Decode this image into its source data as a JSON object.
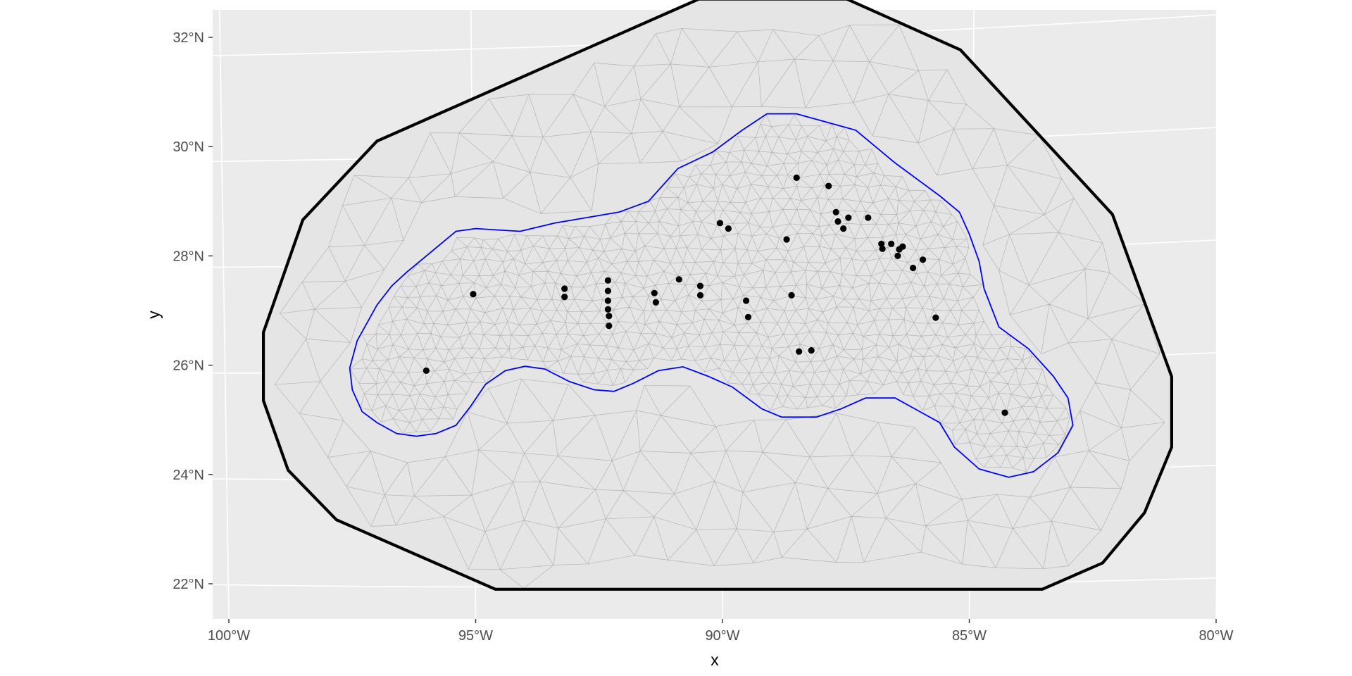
{
  "chart_data": {
    "type": "scatter",
    "title": "",
    "xlabel": "x",
    "ylabel": "y",
    "xlim": [
      -100.0,
      -80.0
    ],
    "ylim": [
      21.6,
      32.8
    ],
    "x_ticks": [
      -100,
      -95,
      -90,
      -85,
      -80
    ],
    "x_tick_labels": [
      "100°W",
      "95°W",
      "90°W",
      "85°W",
      "80°W"
    ],
    "y_ticks": [
      22,
      24,
      26,
      28,
      30,
      32
    ],
    "y_tick_labels": [
      "22°N",
      "24°N",
      "26°N",
      "28°N",
      "30°N",
      "32°N"
    ],
    "grid": true,
    "panel_background": "#ebebeb",
    "legend": "none",
    "colors": {
      "points": "#000000",
      "outer_boundary": "#000000",
      "inner_boundary": "#0000ff",
      "mesh": "#b4b4b4",
      "graticule": "#ffffff"
    },
    "outer_boundary": [
      [
        -90.48,
        32.7
      ],
      [
        -87.48,
        32.7
      ],
      [
        -85.18,
        31.77
      ],
      [
        -82.1,
        28.76
      ],
      [
        -80.9,
        25.79
      ],
      [
        -80.9,
        24.5
      ],
      [
        -81.45,
        23.3
      ],
      [
        -82.3,
        22.38
      ],
      [
        -83.52,
        21.9
      ],
      [
        -94.6,
        21.9
      ],
      [
        -97.82,
        23.17
      ],
      [
        -98.8,
        24.08
      ],
      [
        -99.3,
        25.35
      ],
      [
        -99.3,
        26.6
      ],
      [
        -98.5,
        28.66
      ],
      [
        -97.0,
        30.1
      ]
    ],
    "inner_boundary": [
      [
        -96.4,
        27.7
      ],
      [
        -95.4,
        28.45
      ],
      [
        -95.0,
        28.5
      ],
      [
        -94.1,
        28.45
      ],
      [
        -93.4,
        28.6
      ],
      [
        -92.1,
        28.8
      ],
      [
        -91.5,
        29.0
      ],
      [
        -90.9,
        29.6
      ],
      [
        -90.2,
        29.9
      ],
      [
        -89.6,
        30.3
      ],
      [
        -89.1,
        30.6
      ],
      [
        -88.5,
        30.6
      ],
      [
        -87.9,
        30.45
      ],
      [
        -87.3,
        30.3
      ],
      [
        -86.5,
        29.7
      ],
      [
        -85.6,
        29.1
      ],
      [
        -85.2,
        28.8
      ],
      [
        -85.0,
        28.4
      ],
      [
        -84.8,
        27.9
      ],
      [
        -84.7,
        27.4
      ],
      [
        -84.4,
        26.7
      ],
      [
        -83.8,
        26.3
      ],
      [
        -83.3,
        25.8
      ],
      [
        -83.0,
        25.4
      ],
      [
        -82.9,
        24.9
      ],
      [
        -83.2,
        24.4
      ],
      [
        -83.7,
        24.05
      ],
      [
        -84.2,
        23.95
      ],
      [
        -84.8,
        24.1
      ],
      [
        -85.3,
        24.5
      ],
      [
        -85.6,
        24.95
      ],
      [
        -86.0,
        25.15
      ],
      [
        -86.5,
        25.4
      ],
      [
        -87.1,
        25.4
      ],
      [
        -87.6,
        25.2
      ],
      [
        -88.1,
        25.05
      ],
      [
        -88.8,
        25.05
      ],
      [
        -89.2,
        25.2
      ],
      [
        -89.8,
        25.6
      ],
      [
        -90.3,
        25.8
      ],
      [
        -90.8,
        25.97
      ],
      [
        -91.3,
        25.9
      ],
      [
        -91.8,
        25.67
      ],
      [
        -92.2,
        25.52
      ],
      [
        -92.6,
        25.55
      ],
      [
        -93.1,
        25.7
      ],
      [
        -93.6,
        25.93
      ],
      [
        -94.0,
        25.98
      ],
      [
        -94.4,
        25.9
      ],
      [
        -94.8,
        25.65
      ],
      [
        -95.1,
        25.25
      ],
      [
        -95.4,
        24.9
      ],
      [
        -95.8,
        24.75
      ],
      [
        -96.2,
        24.7
      ],
      [
        -96.6,
        24.75
      ],
      [
        -97.0,
        24.95
      ],
      [
        -97.3,
        25.15
      ],
      [
        -97.5,
        25.55
      ],
      [
        -97.55,
        25.95
      ],
      [
        -97.4,
        26.45
      ],
      [
        -97.0,
        27.1
      ],
      [
        -96.7,
        27.45
      ]
    ],
    "points": {
      "x": [
        -96.0,
        -95.05,
        -93.2,
        -93.2,
        -92.32,
        -92.32,
        -92.32,
        -92.32,
        -92.3,
        -92.3,
        -91.38,
        -91.35,
        -90.88,
        -90.45,
        -90.45,
        -90.05,
        -89.88,
        -89.52,
        -89.48,
        -88.7,
        -88.6,
        -88.5,
        -88.45,
        -88.2,
        -87.85,
        -87.7,
        -87.66,
        -87.55,
        -87.45,
        -87.05,
        -86.78,
        -86.76,
        -86.58,
        -86.45,
        -86.42,
        -86.35,
        -86.14,
        -85.94,
        -85.68,
        -84.28
      ],
      "y": [
        25.9,
        27.3,
        27.4,
        27.25,
        27.55,
        27.36,
        27.18,
        27.02,
        26.9,
        26.72,
        27.32,
        27.15,
        27.57,
        27.45,
        27.28,
        28.6,
        28.5,
        27.18,
        26.88,
        28.3,
        27.28,
        29.43,
        26.25,
        26.27,
        29.28,
        28.8,
        28.63,
        28.5,
        28.7,
        28.7,
        28.22,
        28.13,
        28.22,
        28.0,
        28.12,
        28.17,
        27.78,
        27.93,
        26.87,
        25.13
      ]
    },
    "mesh_note_absent": ""
  }
}
